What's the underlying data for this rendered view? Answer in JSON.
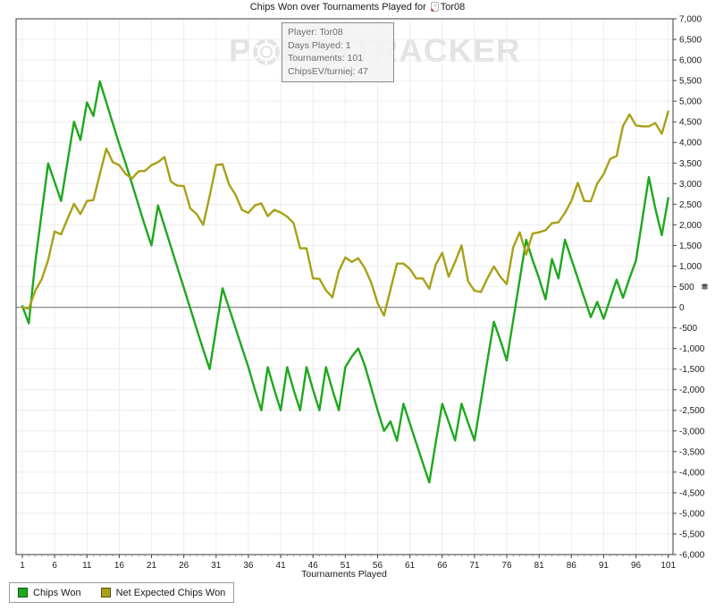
{
  "title": {
    "prefix": "Chips Won over Tournaments Played for",
    "player": "Tor08"
  },
  "tooltip": {
    "lines": [
      "Player: Tor08",
      "Days Played: 1",
      "Tournaments: 101",
      "ChipsEV/turniej: 47"
    ]
  },
  "watermark": {
    "part1": "P",
    "part2": "KERTRACKER"
  },
  "axes": {
    "x_title": "Tournaments Played"
  },
  "colors": {
    "chips_won": "#1ea81e",
    "net_expected": "#a9a018",
    "grid": "#ededed",
    "zero_line": "#8f8f8f",
    "border": "#3c3c3c",
    "tick_label": "#1a1a1a"
  },
  "chart_data": {
    "type": "line",
    "title": "Chips Won over Tournaments Played for Tor08",
    "xlabel": "Tournaments Played",
    "ylabel": "Chips",
    "x_range": [
      1,
      101
    ],
    "x_ticks": [
      1,
      6,
      11,
      16,
      21,
      26,
      31,
      36,
      41,
      46,
      51,
      56,
      61,
      66,
      71,
      76,
      81,
      86,
      91,
      96,
      101
    ],
    "ylim": [
      -6000,
      7000
    ],
    "ytick_step": 500,
    "grid": true,
    "legend_position": "bottom-left",
    "series": [
      {
        "name": "Chips Won",
        "color": "#1ea81e",
        "values": [
          30,
          -390,
          1100,
          2300,
          3490,
          3040,
          2580,
          3540,
          4500,
          4060,
          4970,
          4640,
          5480,
          4970,
          4460,
          3960,
          3490,
          2980,
          2470,
          1970,
          1500,
          2470,
          1970,
          1470,
          970,
          470,
          -30,
          -530,
          -1030,
          -1500,
          -520,
          460,
          -20,
          -500,
          -980,
          -1450,
          -2000,
          -2500,
          -1450,
          -2000,
          -2500,
          -1450,
          -2000,
          -2500,
          -1450,
          -2000,
          -2500,
          -1450,
          -2000,
          -2500,
          -1450,
          -1200,
          -1000,
          -1400,
          -1950,
          -2500,
          -3000,
          -2770,
          -3240,
          -2340,
          -2820,
          -3300,
          -3780,
          -4250,
          -3290,
          -2340,
          -2780,
          -3230,
          -2340,
          -2800,
          -3230,
          -2270,
          -1300,
          -350,
          -800,
          -1290,
          -300,
          670,
          1640,
          1150,
          700,
          195,
          1170,
          700,
          1640,
          1170,
          700,
          230,
          -240,
          130,
          -280,
          200,
          670,
          230,
          700,
          1135,
          2150,
          3160,
          2400,
          1750,
          2650
        ]
      },
      {
        "name": "Net Expected Chips Won",
        "color": "#a9a018",
        "values": [
          0,
          -30,
          400,
          680,
          1150,
          1840,
          1770,
          2150,
          2510,
          2260,
          2580,
          2600,
          3230,
          3850,
          3520,
          3450,
          3230,
          3130,
          3300,
          3310,
          3450,
          3520,
          3645,
          3050,
          2950,
          2940,
          2400,
          2260,
          2000,
          2700,
          3450,
          3470,
          2980,
          2730,
          2365,
          2290,
          2470,
          2520,
          2210,
          2365,
          2300,
          2200,
          2040,
          1430,
          1430,
          700,
          690,
          410,
          240,
          880,
          1210,
          1100,
          1190,
          955,
          600,
          100,
          -200,
          430,
          1060,
          1060,
          930,
          700,
          700,
          450,
          1030,
          1320,
          740,
          1100,
          1500,
          630,
          400,
          370,
          700,
          990,
          740,
          560,
          1460,
          1820,
          1280,
          1790,
          1820,
          1870,
          2040,
          2060,
          2290,
          2580,
          3020,
          2580,
          2570,
          3000,
          3230,
          3600,
          3670,
          4400,
          4680,
          4410,
          4390,
          4390,
          4470,
          4210,
          4750
        ]
      }
    ]
  }
}
